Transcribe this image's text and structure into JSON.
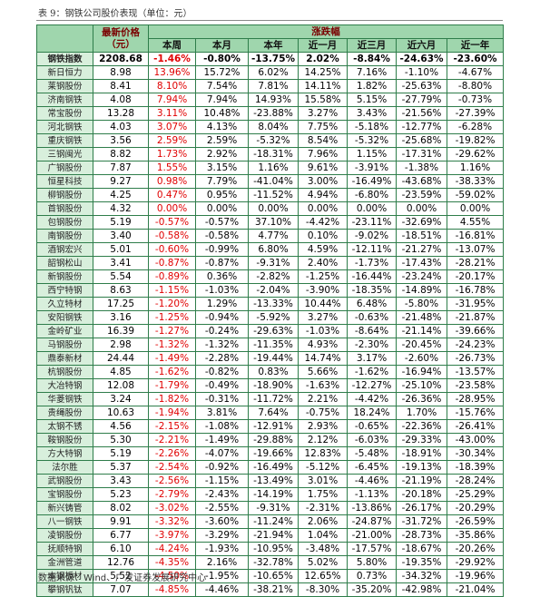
{
  "title": "表 9：钢铁公司股价表现（单位：元）",
  "header": {
    "price": [
      "最新价格",
      "（元）"
    ],
    "change": "涨跌幅",
    "periods": [
      "本周",
      "本月",
      "本年",
      "近一月",
      "近三月",
      "近六月",
      "近一年"
    ]
  },
  "table": {
    "rows": [
      [
        "钢铁指数",
        "2208.68",
        "-1.46%",
        "-0.80%",
        "-13.75%",
        "2.02%",
        "-8.84%",
        "-24.63%",
        "-23.60%"
      ],
      [
        "新日恒力",
        "8.98",
        "13.96%",
        "15.72%",
        "6.02%",
        "14.25%",
        "7.16%",
        "-1.10%",
        "-4.67%"
      ],
      [
        "莱钢股份",
        "8.41",
        "8.10%",
        "7.54%",
        "7.81%",
        "14.11%",
        "1.82%",
        "-25.63%",
        "-8.80%"
      ],
      [
        "济南钢铁",
        "4.08",
        "7.94%",
        "7.94%",
        "14.93%",
        "15.58%",
        "5.15%",
        "-27.79%",
        "-0.73%"
      ],
      [
        "常宝股份",
        "13.28",
        "3.11%",
        "10.48%",
        "-23.88%",
        "3.27%",
        "3.43%",
        "-21.56%",
        "-27.39%"
      ],
      [
        "河北钢铁",
        "4.03",
        "3.07%",
        "4.13%",
        "8.04%",
        "7.75%",
        "-5.18%",
        "-12.77%",
        "-6.28%"
      ],
      [
        "重庆钢铁",
        "3.56",
        "2.59%",
        "2.59%",
        "-5.32%",
        "8.54%",
        "-5.32%",
        "-25.68%",
        "-19.82%"
      ],
      [
        "三钢闽光",
        "8.82",
        "1.73%",
        "2.92%",
        "-18.31%",
        "7.96%",
        "1.15%",
        "-17.31%",
        "-29.62%"
      ],
      [
        "广钢股份",
        "7.87",
        "1.55%",
        "3.15%",
        "1.16%",
        "9.61%",
        "-3.91%",
        "-1.38%",
        "1.16%"
      ],
      [
        "恒星科技",
        "9.27",
        "0.98%",
        "7.79%",
        "-41.04%",
        "3.00%",
        "-16.49%",
        "-43.68%",
        "-38.33%"
      ],
      [
        "柳钢股份",
        "4.25",
        "0.47%",
        "0.95%",
        "-11.52%",
        "4.94%",
        "-6.80%",
        "-23.59%",
        "-59.02%"
      ],
      [
        "首钢股份",
        "4.32",
        "0.00%",
        "0.00%",
        "0.00%",
        "0.00%",
        "0.00%",
        "0.00%",
        "0.00%"
      ],
      [
        "包钢股份",
        "5.19",
        "-0.57%",
        "-0.57%",
        "37.10%",
        "-4.42%",
        "-23.11%",
        "-32.69%",
        "4.55%"
      ],
      [
        "南钢股份",
        "3.40",
        "-0.58%",
        "-0.58%",
        "4.77%",
        "0.10%",
        "-9.02%",
        "-18.51%",
        "-16.81%"
      ],
      [
        "酒钢宏兴",
        "5.01",
        "-0.60%",
        "-0.99%",
        "6.80%",
        "4.59%",
        "-12.11%",
        "-21.27%",
        "-13.07%"
      ],
      [
        "韶钢松山",
        "3.41",
        "-0.87%",
        "-0.87%",
        "-9.31%",
        "2.40%",
        "-1.73%",
        "-17.43%",
        "-28.21%"
      ],
      [
        "新钢股份",
        "5.54",
        "-0.89%",
        "0.36%",
        "-2.82%",
        "-1.25%",
        "-16.44%",
        "-23.24%",
        "-20.17%"
      ],
      [
        "西宁特钢",
        "8.63",
        "-1.15%",
        "-1.03%",
        "-2.04%",
        "-3.90%",
        "-18.35%",
        "-14.89%",
        "-16.78%"
      ],
      [
        "久立特材",
        "17.25",
        "-1.20%",
        "1.29%",
        "-13.33%",
        "10.44%",
        "6.48%",
        "-5.80%",
        "-31.95%"
      ],
      [
        "安阳钢铁",
        "3.16",
        "-1.25%",
        "-0.94%",
        "-5.92%",
        "3.27%",
        "-0.63%",
        "-21.48%",
        "-21.87%"
      ],
      [
        "金岭矿业",
        "16.39",
        "-1.27%",
        "-0.24%",
        "-29.63%",
        "-1.03%",
        "-8.64%",
        "-21.14%",
        "-39.66%"
      ],
      [
        "马钢股份",
        "2.98",
        "-1.32%",
        "-1.32%",
        "-11.35%",
        "4.93%",
        "-2.30%",
        "-20.45%",
        "-24.23%"
      ],
      [
        "鼎泰新材",
        "24.44",
        "-1.49%",
        "-2.28%",
        "-19.44%",
        "14.74%",
        "3.17%",
        "-2.60%",
        "-26.73%"
      ],
      [
        "杭钢股份",
        "4.85",
        "-1.62%",
        "-0.82%",
        "0.83%",
        "5.66%",
        "-1.62%",
        "-16.94%",
        "-13.57%"
      ],
      [
        "大冶特钢",
        "12.08",
        "-1.79%",
        "-0.49%",
        "-18.90%",
        "-1.63%",
        "-12.27%",
        "-25.10%",
        "-23.58%"
      ],
      [
        "华菱钢铁",
        "3.24",
        "-1.82%",
        "-0.31%",
        "-11.72%",
        "2.21%",
        "-4.42%",
        "-26.36%",
        "-28.95%"
      ],
      [
        "贵绳股份",
        "10.63",
        "-1.94%",
        "3.81%",
        "7.64%",
        "-0.75%",
        "18.24%",
        "1.70%",
        "-15.76%"
      ],
      [
        "太钢不锈",
        "4.56",
        "-2.15%",
        "-1.08%",
        "-12.91%",
        "2.93%",
        "-0.65%",
        "-22.36%",
        "-26.41%"
      ],
      [
        "鞍钢股份",
        "5.30",
        "-2.21%",
        "-1.49%",
        "-29.88%",
        "2.12%",
        "-6.03%",
        "-29.33%",
        "-43.00%"
      ],
      [
        "方大特钢",
        "5.19",
        "-2.26%",
        "-4.07%",
        "-19.66%",
        "12.83%",
        "-5.48%",
        "-18.91%",
        "-30.34%"
      ],
      [
        "法尔胜",
        "5.37",
        "-2.54%",
        "-0.92%",
        "-16.49%",
        "-5.12%",
        "-6.45%",
        "-19.13%",
        "-18.39%"
      ],
      [
        "武钢股份",
        "3.43",
        "-2.56%",
        "-1.15%",
        "-13.49%",
        "3.01%",
        "-4.46%",
        "-21.19%",
        "-28.24%"
      ],
      [
        "宝钢股份",
        "5.23",
        "-2.79%",
        "-2.43%",
        "-14.19%",
        "1.75%",
        "-1.13%",
        "-20.18%",
        "-25.29%"
      ],
      [
        "新兴铸管",
        "8.02",
        "-3.02%",
        "-2.55%",
        "-9.31%",
        "-2.31%",
        "-13.86%",
        "-26.17%",
        "-20.29%"
      ],
      [
        "八一钢铁",
        "9.91",
        "-3.32%",
        "-3.60%",
        "-11.24%",
        "2.06%",
        "-24.87%",
        "-31.72%",
        "-26.59%"
      ],
      [
        "凌钢股份",
        "6.77",
        "-3.97%",
        "-3.29%",
        "-21.94%",
        "1.04%",
        "-21.00%",
        "-28.73%",
        "-35.86%"
      ],
      [
        "抚顺特钢",
        "6.10",
        "-4.24%",
        "-1.93%",
        "-10.95%",
        "-3.48%",
        "-17.57%",
        "-18.67%",
        "-20.26%"
      ],
      [
        "金洲管道",
        "12.76",
        "-4.35%",
        "2.16%",
        "-32.78%",
        "5.02%",
        "5.80%",
        "-19.35%",
        "-29.92%"
      ],
      [
        "本钢板材",
        "5.52",
        "-4.50%",
        "-1.95%",
        "-10.65%",
        "12.65%",
        "0.73%",
        "-34.32%",
        "-19.96%"
      ],
      [
        "攀钢钒钛",
        "7.07",
        "-4.85%",
        "-4.46%",
        "-38.21%",
        "-8.30%",
        "-35.20%",
        "-42.98%",
        "-21.04%"
      ]
    ]
  },
  "source": "数据来源：Wind、广发证券发展研究中心"
}
